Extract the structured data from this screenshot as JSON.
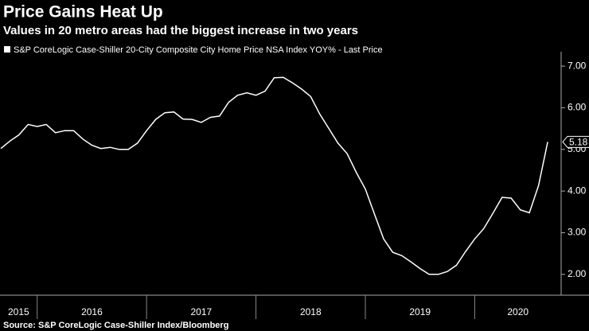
{
  "chart_data": {
    "type": "line",
    "title": "Price Gains Heat Up",
    "subtitle": "Values in 20 metro areas had the biggest increase in two years",
    "source": "Source: S&P CoreLogic Case-Shiller Index/Bloomberg",
    "x": [
      2015.667,
      2015.75,
      2015.833,
      2015.917,
      2016,
      2016.083,
      2016.167,
      2016.25,
      2016.333,
      2016.417,
      2016.5,
      2016.583,
      2016.667,
      2016.75,
      2016.833,
      2016.917,
      2017,
      2017.083,
      2017.167,
      2017.25,
      2017.333,
      2017.417,
      2017.5,
      2017.583,
      2017.667,
      2017.75,
      2017.833,
      2017.917,
      2018,
      2018.083,
      2018.167,
      2018.25,
      2018.333,
      2018.417,
      2018.5,
      2018.583,
      2018.667,
      2018.75,
      2018.833,
      2018.917,
      2019,
      2019.083,
      2019.167,
      2019.25,
      2019.333,
      2019.417,
      2019.5,
      2019.583,
      2019.667,
      2019.75,
      2019.833,
      2019.917,
      2020,
      2020.083,
      2020.167,
      2020.25,
      2020.333,
      2020.417,
      2020.5,
      2020.583,
      2020.667
    ],
    "series": [
      {
        "name": "S&P CoreLogic Case-Shiller 20-City Composite City Home Price NSA Index YOY% - Last Price",
        "color": "#ffffff",
        "values": [
          5.02,
          5.2,
          5.35,
          5.6,
          5.55,
          5.6,
          5.4,
          5.45,
          5.45,
          5.25,
          5.1,
          5.02,
          5.05,
          5.0,
          5.0,
          5.15,
          5.45,
          5.72,
          5.88,
          5.9,
          5.73,
          5.72,
          5.65,
          5.77,
          5.8,
          6.13,
          6.3,
          6.36,
          6.3,
          6.4,
          6.72,
          6.73,
          6.6,
          6.45,
          6.27,
          5.85,
          5.5,
          5.15,
          4.9,
          4.45,
          4.05,
          3.45,
          2.85,
          2.53,
          2.45,
          2.3,
          2.14,
          2.0,
          2.0,
          2.07,
          2.22,
          2.55,
          2.85,
          3.1,
          3.47,
          3.85,
          3.83,
          3.55,
          3.48,
          4.13,
          5.18
        ]
      }
    ],
    "xlim": [
      2015.66,
      2020.79
    ],
    "xticks": [
      2015,
      2016,
      2017,
      2018,
      2019,
      2020
    ],
    "ylim": [
      1.5,
      7.25
    ],
    "yticks": [
      {
        "value": 2,
        "label": "2.00"
      },
      {
        "value": 3,
        "label": "3.00"
      },
      {
        "value": 4,
        "label": "4.00"
      },
      {
        "value": 5,
        "label": "5.00"
      },
      {
        "value": 6,
        "label": "6.00"
      },
      {
        "value": 7,
        "label": "7.00"
      }
    ],
    "grid": false
  }
}
